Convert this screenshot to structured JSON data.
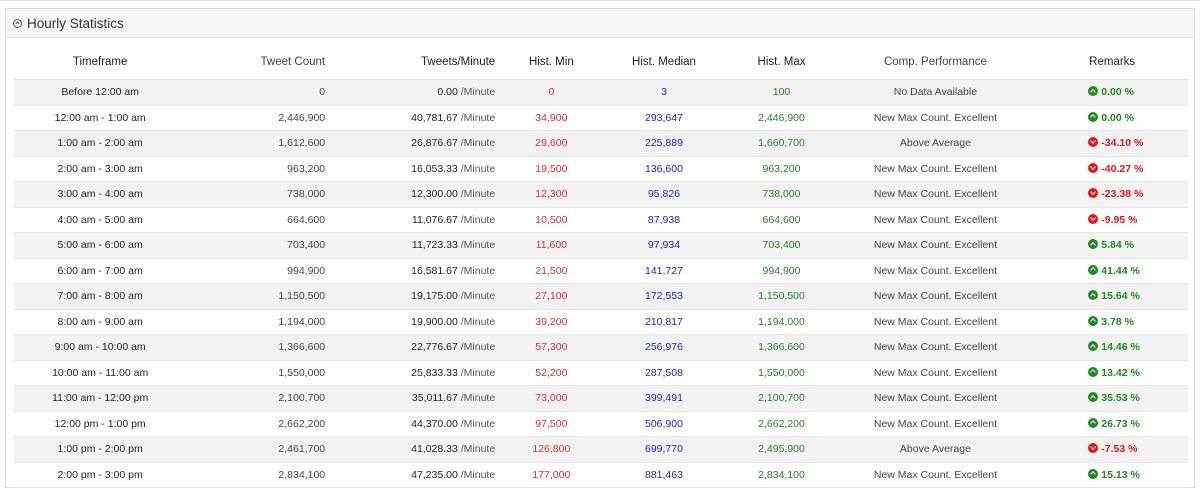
{
  "panel": {
    "title": "Hourly Statistics",
    "icon": "chevron-up-circle-icon"
  },
  "columns": [
    "Timeframe",
    "Tweet Count",
    "Tweets/Minute",
    "Hist. Min",
    "Hist. Median",
    "Hist. Max",
    "Comp. Performance",
    "Remarks"
  ],
  "unit": "/Minute",
  "colors": {
    "min": "#e03030",
    "median": "#2020d8",
    "max": "#2a7d2a",
    "up": "#1f8a1f",
    "down": "#e01818"
  },
  "rows": [
    {
      "timeframe": "Before 12:00 am",
      "count": "0",
      "tpm": "0.00",
      "min": "0",
      "median": "3",
      "max": "100",
      "perf": "No Data Available",
      "remark": "0.00 %",
      "dir": "up"
    },
    {
      "timeframe": "12:00 am - 1:00 am",
      "count": "2,446,900",
      "tpm": "40,781.67",
      "min": "34,900",
      "median": "293,647",
      "max": "2,446,900",
      "perf": "New Max Count. Excellent",
      "remark": "0.00 %",
      "dir": "up"
    },
    {
      "timeframe": "1:00 am - 2:00 am",
      "count": "1,612,600",
      "tpm": "26,876.67",
      "min": "29,600",
      "median": "225,889",
      "max": "1,660,700",
      "perf": "Above Average",
      "remark": "-34.10 %",
      "dir": "down"
    },
    {
      "timeframe": "2:00 am - 3:00 am",
      "count": "963,200",
      "tpm": "16,053.33",
      "min": "19,500",
      "median": "136,600",
      "max": "963,200",
      "perf": "New Max Count. Excellent",
      "remark": "-40.27 %",
      "dir": "down"
    },
    {
      "timeframe": "3:00 am - 4:00 am",
      "count": "738,000",
      "tpm": "12,300.00",
      "min": "12,300",
      "median": "95,826",
      "max": "738,000",
      "perf": "New Max Count. Excellent",
      "remark": "-23.38 %",
      "dir": "down"
    },
    {
      "timeframe": "4:00 am - 5:00 am",
      "count": "664,600",
      "tpm": "11,076.67",
      "min": "10,500",
      "median": "87,938",
      "max": "664,600",
      "perf": "New Max Count. Excellent",
      "remark": "-9.95 %",
      "dir": "down"
    },
    {
      "timeframe": "5:00 am - 6:00 am",
      "count": "703,400",
      "tpm": "11,723.33",
      "min": "11,600",
      "median": "97,934",
      "max": "703,400",
      "perf": "New Max Count. Excellent",
      "remark": "5.84 %",
      "dir": "up"
    },
    {
      "timeframe": "6:00 am - 7:00 am",
      "count": "994,900",
      "tpm": "16,581.67",
      "min": "21,500",
      "median": "141,727",
      "max": "994,900",
      "perf": "New Max Count. Excellent",
      "remark": "41.44 %",
      "dir": "up"
    },
    {
      "timeframe": "7:00 am - 8:00 am",
      "count": "1,150,500",
      "tpm": "19,175.00",
      "min": "27,100",
      "median": "172,553",
      "max": "1,150,500",
      "perf": "New Max Count. Excellent",
      "remark": "15.64 %",
      "dir": "up"
    },
    {
      "timeframe": "8:00 am - 9:00 am",
      "count": "1,194,000",
      "tpm": "19,900.00",
      "min": "39,200",
      "median": "210,817",
      "max": "1,194,000",
      "perf": "New Max Count. Excellent",
      "remark": "3.78 %",
      "dir": "up"
    },
    {
      "timeframe": "9:00 am - 10:00 am",
      "count": "1,366,600",
      "tpm": "22,776.67",
      "min": "57,300",
      "median": "256,976",
      "max": "1,366,600",
      "perf": "New Max Count. Excellent",
      "remark": "14.46 %",
      "dir": "up"
    },
    {
      "timeframe": "10:00 am - 11:00 am",
      "count": "1,550,000",
      "tpm": "25,833.33",
      "min": "52,200",
      "median": "287,508",
      "max": "1,550,000",
      "perf": "New Max Count. Excellent",
      "remark": "13.42 %",
      "dir": "up"
    },
    {
      "timeframe": "11:00 am - 12:00 pm",
      "count": "2,100,700",
      "tpm": "35,011.67",
      "min": "73,000",
      "median": "399,491",
      "max": "2,100,700",
      "perf": "New Max Count. Excellent",
      "remark": "35.53 %",
      "dir": "up"
    },
    {
      "timeframe": "12:00 pm - 1:00 pm",
      "count": "2,662,200",
      "tpm": "44,370.00",
      "min": "97,500",
      "median": "506,900",
      "max": "2,662,200",
      "perf": "New Max Count. Excellent",
      "remark": "26.73 %",
      "dir": "up"
    },
    {
      "timeframe": "1:00 pm - 2:00 pm",
      "count": "2,461,700",
      "tpm": "41,028.33",
      "min": "126,800",
      "median": "699,770",
      "max": "2,495,900",
      "perf": "Above Average",
      "remark": "-7.53 %",
      "dir": "down"
    },
    {
      "timeframe": "2:00 pm - 3:00 pm",
      "count": "2,834,100",
      "tpm": "47,235.00",
      "min": "177,000",
      "median": "881,463",
      "max": "2,834,100",
      "perf": "New Max Count. Excellent",
      "remark": "15.13 %",
      "dir": "up"
    }
  ]
}
